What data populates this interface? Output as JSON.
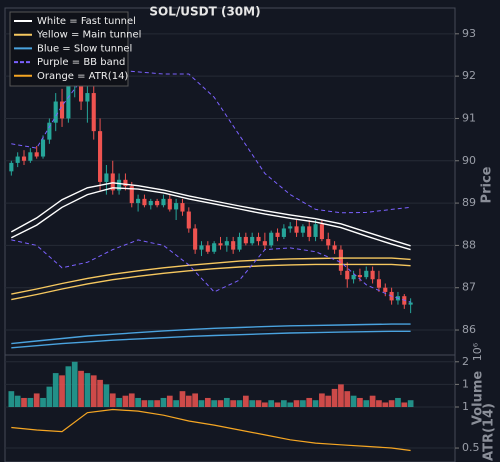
{
  "chart_data": {
    "type": "candlestick",
    "title": "SOL/USDT (30M)",
    "ylabel": "Price",
    "xlim": [
      -1,
      70
    ],
    "ylim": [
      85.41,
      93.61
    ],
    "yticks": [
      86,
      87,
      88,
      89,
      90,
      91,
      92,
      93
    ],
    "grid": true,
    "up_color": "#26a69a",
    "down_color": "#ef5350",
    "open": [
      89.75,
      89.95,
      90.1,
      90.0,
      90.2,
      90.1,
      90.5,
      90.9,
      91.4,
      91.0,
      91.9,
      92.1,
      91.4,
      91.6,
      90.7,
      89.5,
      89.7,
      89.3,
      89.55,
      89.4,
      89.0,
      89.1,
      88.95,
      89.05,
      88.95,
      89.1,
      88.85,
      89.0,
      88.8,
      88.4,
      87.9,
      88.0,
      87.85,
      88.05,
      88.0,
      88.1,
      87.9,
      88.2,
      88.05,
      88.2,
      88.1,
      88.0,
      88.3,
      88.2,
      88.4,
      88.45,
      88.3,
      88.45,
      88.2,
      88.5,
      88.15,
      88.0,
      87.9,
      87.4,
      87.2,
      87.3,
      87.25,
      87.4,
      87.2,
      87.0,
      86.9,
      86.7,
      86.8,
      86.6
    ],
    "high": [
      90.0,
      90.2,
      90.25,
      90.3,
      90.35,
      90.6,
      91.0,
      91.6,
      91.7,
      92.2,
      92.3,
      92.2,
      91.8,
      91.9,
      91.0,
      89.9,
      90.0,
      89.7,
      89.7,
      89.5,
      89.2,
      89.2,
      89.1,
      89.1,
      89.2,
      89.2,
      89.1,
      89.1,
      88.9,
      88.5,
      88.1,
      88.1,
      88.1,
      88.2,
      88.2,
      88.2,
      88.3,
      88.3,
      88.3,
      88.3,
      88.3,
      88.35,
      88.4,
      88.5,
      88.55,
      88.6,
      88.5,
      88.6,
      88.6,
      88.6,
      88.3,
      88.1,
      88.0,
      87.6,
      87.4,
      87.45,
      87.5,
      87.5,
      87.4,
      87.1,
      87.0,
      86.9,
      86.85,
      86.75
    ],
    "low": [
      89.65,
      89.85,
      89.9,
      89.95,
      90.05,
      90.05,
      90.4,
      90.7,
      90.8,
      90.9,
      91.5,
      91.2,
      90.9,
      90.5,
      89.3,
      89.2,
      89.2,
      89.2,
      89.3,
      88.9,
      88.8,
      88.9,
      88.85,
      88.9,
      88.9,
      88.8,
      88.6,
      88.7,
      88.3,
      87.8,
      87.75,
      87.8,
      87.8,
      87.9,
      87.85,
      87.8,
      87.85,
      88.0,
      88.0,
      88.0,
      87.9,
      87.95,
      88.1,
      88.15,
      88.3,
      88.2,
      88.2,
      88.1,
      88.1,
      88.1,
      87.9,
      87.8,
      87.3,
      87.0,
      87.1,
      87.15,
      87.2,
      87.1,
      86.9,
      86.8,
      86.6,
      86.6,
      86.5,
      86.4
    ],
    "close": [
      89.95,
      90.1,
      90.0,
      90.2,
      90.1,
      90.5,
      90.9,
      91.4,
      91.0,
      91.9,
      92.1,
      91.4,
      91.6,
      90.7,
      89.5,
      89.7,
      89.3,
      89.55,
      89.4,
      89.0,
      89.1,
      88.95,
      89.05,
      88.95,
      89.1,
      88.85,
      89.0,
      88.8,
      88.4,
      87.9,
      88.0,
      87.85,
      88.05,
      88.0,
      88.1,
      87.9,
      88.2,
      88.05,
      88.2,
      88.1,
      88.0,
      88.3,
      88.2,
      88.4,
      88.45,
      88.3,
      88.45,
      88.2,
      88.5,
      88.15,
      88.0,
      87.9,
      87.4,
      87.2,
      87.3,
      87.25,
      87.4,
      87.2,
      87.0,
      86.9,
      86.7,
      86.8,
      86.6,
      86.65
    ],
    "overlay_x": [
      0,
      4,
      8,
      12,
      16,
      20,
      24,
      28,
      32,
      36,
      40,
      44,
      48,
      52,
      56,
      60,
      63
    ],
    "overlays": [
      {
        "name": "White = Fast tunnel",
        "color": "#ffffff",
        "dashed": false,
        "upper": [
          88.32,
          88.65,
          89.08,
          89.36,
          89.48,
          89.41,
          89.31,
          89.17,
          89.05,
          88.93,
          88.82,
          88.72,
          88.63,
          88.51,
          88.32,
          88.13,
          87.99
        ],
        "lower": [
          88.18,
          88.48,
          88.9,
          89.2,
          89.36,
          89.33,
          89.24,
          89.1,
          88.98,
          88.86,
          88.74,
          88.64,
          88.55,
          88.42,
          88.22,
          88.03,
          87.9
        ]
      },
      {
        "name": "Yellow = Main tunnel",
        "color": "#f6c85f",
        "dashed": false,
        "upper": [
          86.85,
          86.97,
          87.1,
          87.22,
          87.32,
          87.4,
          87.47,
          87.53,
          87.58,
          87.63,
          87.66,
          87.68,
          87.69,
          87.7,
          87.7,
          87.7,
          87.67
        ],
        "lower": [
          86.72,
          86.84,
          86.97,
          87.09,
          87.19,
          87.27,
          87.34,
          87.4,
          87.45,
          87.49,
          87.52,
          87.54,
          87.55,
          87.55,
          87.55,
          87.55,
          87.52
        ]
      },
      {
        "name": "Blue = Slow tunnel",
        "color": "#4aa3df",
        "dashed": false,
        "upper": [
          85.68,
          85.74,
          85.8,
          85.86,
          85.9,
          85.94,
          85.98,
          86.01,
          86.04,
          86.06,
          86.08,
          86.1,
          86.11,
          86.12,
          86.13,
          86.14,
          86.14
        ],
        "lower": [
          85.58,
          85.63,
          85.68,
          85.72,
          85.76,
          85.79,
          85.82,
          85.85,
          85.87,
          85.89,
          85.91,
          85.93,
          85.94,
          85.95,
          85.96,
          85.97,
          85.97
        ]
      },
      {
        "name": "Purple = BB band",
        "color": "#7b61ff",
        "dashed": true,
        "upper": [
          90.4,
          90.3,
          91.3,
          92.1,
          92.15,
          92.1,
          92.05,
          92.05,
          91.5,
          90.6,
          89.7,
          89.2,
          88.85,
          88.77,
          88.78,
          88.85,
          88.9
        ],
        "lower": [
          88.13,
          88.0,
          87.47,
          87.6,
          87.9,
          88.13,
          88.0,
          87.54,
          86.9,
          87.18,
          87.9,
          87.94,
          87.85,
          87.6,
          87.07,
          86.8,
          86.66
        ]
      }
    ],
    "volume": {
      "ylabel": "Volume",
      "offset_label": "10⁶",
      "ylim": [
        0,
        2.3
      ],
      "yticks": [
        1,
        2
      ],
      "values": [
        0.7,
        0.5,
        0.4,
        0.4,
        0.6,
        0.4,
        0.9,
        1.5,
        1.4,
        1.8,
        2.0,
        1.6,
        1.5,
        1.4,
        1.2,
        1.0,
        0.6,
        0.4,
        0.5,
        0.6,
        0.4,
        0.3,
        0.3,
        0.3,
        0.4,
        0.5,
        0.3,
        0.7,
        0.5,
        0.6,
        0.3,
        0.4,
        0.3,
        0.3,
        0.4,
        0.3,
        0.3,
        0.5,
        0.3,
        0.3,
        0.2,
        0.3,
        0.2,
        0.3,
        0.2,
        0.3,
        0.3,
        0.4,
        0.3,
        0.6,
        0.5,
        0.8,
        1.0,
        0.7,
        0.5,
        0.4,
        0.3,
        0.5,
        0.3,
        0.2,
        0.3,
        0.4,
        0.2,
        0.3
      ]
    },
    "atr": {
      "name": "Orange = ATR(14)",
      "ylabel": "ATR(14)",
      "color": "#f5a623",
      "ylim": [
        0.33,
        1.0
      ],
      "yticks": [
        0.5,
        1
      ],
      "x": [
        0,
        4,
        8,
        12,
        16,
        20,
        24,
        28,
        32,
        36,
        40,
        44,
        48,
        52,
        56,
        60,
        63
      ],
      "values": [
        0.75,
        0.72,
        0.7,
        0.93,
        0.97,
        0.95,
        0.9,
        0.83,
        0.78,
        0.72,
        0.66,
        0.6,
        0.56,
        0.54,
        0.52,
        0.5,
        0.47
      ]
    }
  }
}
